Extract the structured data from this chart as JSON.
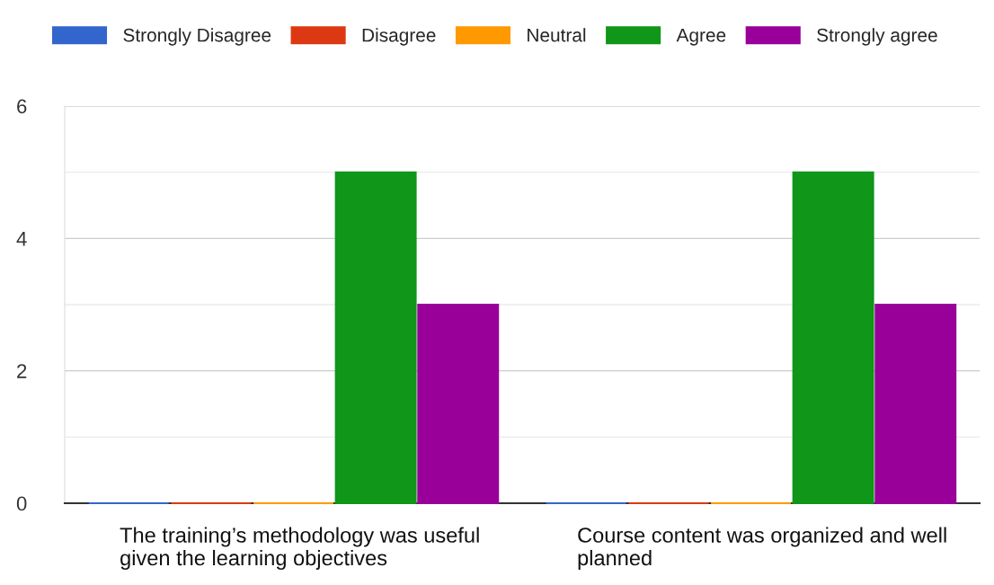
{
  "chart_data": {
    "type": "bar",
    "categories": [
      "The training’s methodology was useful given the learning objectives",
      "Course content was organized and well planned"
    ],
    "series": [
      {
        "name": "Strongly Disagree",
        "color": "#3366cc",
        "values": [
          0,
          0
        ]
      },
      {
        "name": "Disagree",
        "color": "#dc3912",
        "values": [
          0,
          0
        ]
      },
      {
        "name": "Neutral",
        "color": "#ff9900",
        "values": [
          0,
          0
        ]
      },
      {
        "name": "Agree",
        "color": "#109618",
        "values": [
          5,
          5
        ]
      },
      {
        "name": "Strongly agree",
        "color": "#990099",
        "values": [
          3,
          3
        ]
      }
    ],
    "ylim": [
      0,
      6
    ],
    "yticks": [
      0,
      {
        "value": 1,
        "label": null
      },
      2,
      {
        "value": 3,
        "label": null
      },
      4,
      {
        "value": 5,
        "label": null
      },
      6
    ],
    "grid": "y",
    "legend": "top"
  }
}
